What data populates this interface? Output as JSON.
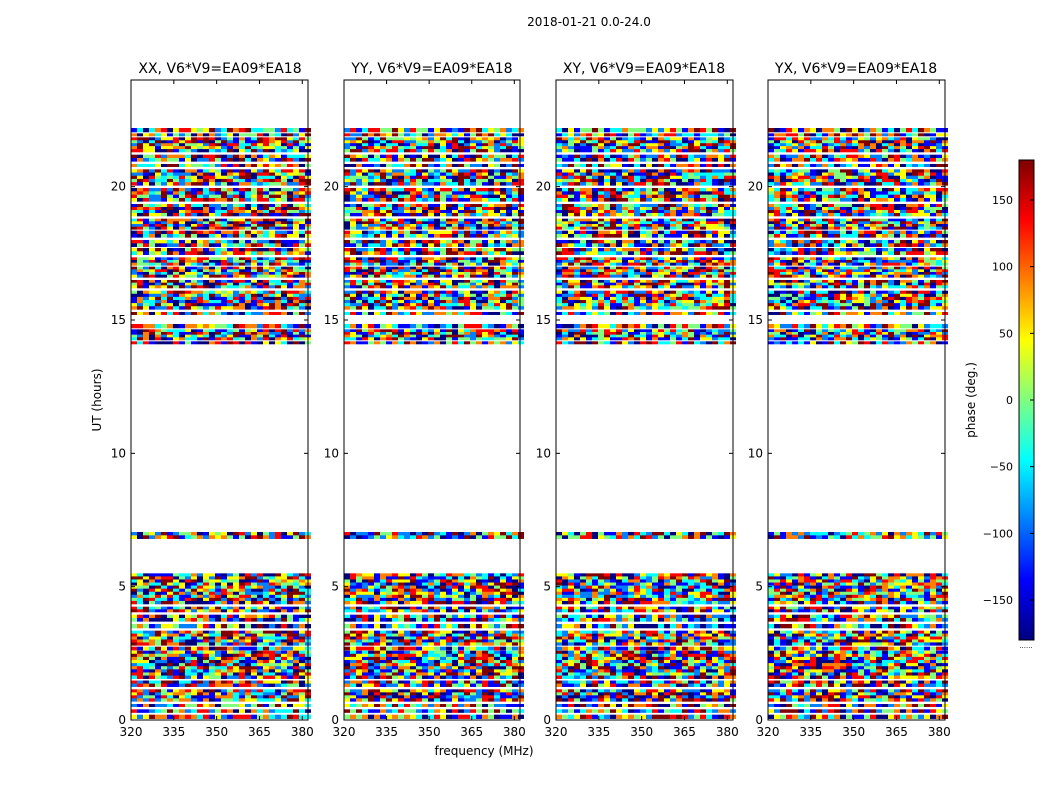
{
  "chart_data": {
    "type": "heatmap",
    "suptitle": "2018-01-21 0.0-24.0",
    "xlabel": "frequency (MHz)",
    "ylabel": "UT (hours)",
    "xlim": [
      320,
      382
    ],
    "ylim": [
      0,
      24
    ],
    "xticks": [
      320,
      335,
      350,
      365,
      380
    ],
    "yticks": [
      0,
      5,
      10,
      15,
      20
    ],
    "panels": [
      {
        "title": "XX, V6*V9=EA09*EA18",
        "polarization": "XX"
      },
      {
        "title": "YY, V6*V9=EA09*EA18",
        "polarization": "YY"
      },
      {
        "title": "XY, V6*V9=EA09*EA18",
        "polarization": "XY"
      },
      {
        "title": "YX, V6*V9=EA09*EA18",
        "polarization": "YX"
      }
    ],
    "data_intervals_hours": [
      [
        0.05,
        0.2
      ],
      [
        0.28,
        0.4
      ],
      [
        0.5,
        0.6
      ],
      [
        0.7,
        1.15
      ],
      [
        1.25,
        1.48
      ],
      [
        1.55,
        2.6
      ],
      [
        2.62,
        2.75
      ],
      [
        2.8,
        3.35
      ],
      [
        3.45,
        3.6
      ],
      [
        3.7,
        3.95
      ],
      [
        4.05,
        4.25
      ],
      [
        4.35,
        5.5
      ],
      [
        6.8,
        7.05
      ],
      [
        14.1,
        14.2
      ],
      [
        14.25,
        14.65
      ],
      [
        14.7,
        14.85
      ],
      [
        15.2,
        15.3
      ],
      [
        15.4,
        16.1
      ],
      [
        16.2,
        16.5
      ],
      [
        16.6,
        17.0
      ],
      [
        17.05,
        17.35
      ],
      [
        17.45,
        17.7
      ],
      [
        17.75,
        18.0
      ],
      [
        18.1,
        18.35
      ],
      [
        18.4,
        18.8
      ],
      [
        18.9,
        19.35
      ],
      [
        19.45,
        19.95
      ],
      [
        20.05,
        20.65
      ],
      [
        20.75,
        20.85
      ],
      [
        20.95,
        21.2
      ],
      [
        21.3,
        21.85
      ],
      [
        21.9,
        22.0
      ],
      [
        22.05,
        22.2
      ]
    ],
    "colorbar": {
      "label": "phase (deg.)",
      "range": [
        -180,
        180
      ],
      "ticks": [
        -150,
        -100,
        -50,
        0,
        50,
        100,
        150
      ],
      "tick_labels": [
        "−150",
        "−100",
        "−50",
        "0",
        "50",
        "100",
        "150"
      ],
      "colormap": "jet",
      "extra_label": "......"
    }
  }
}
